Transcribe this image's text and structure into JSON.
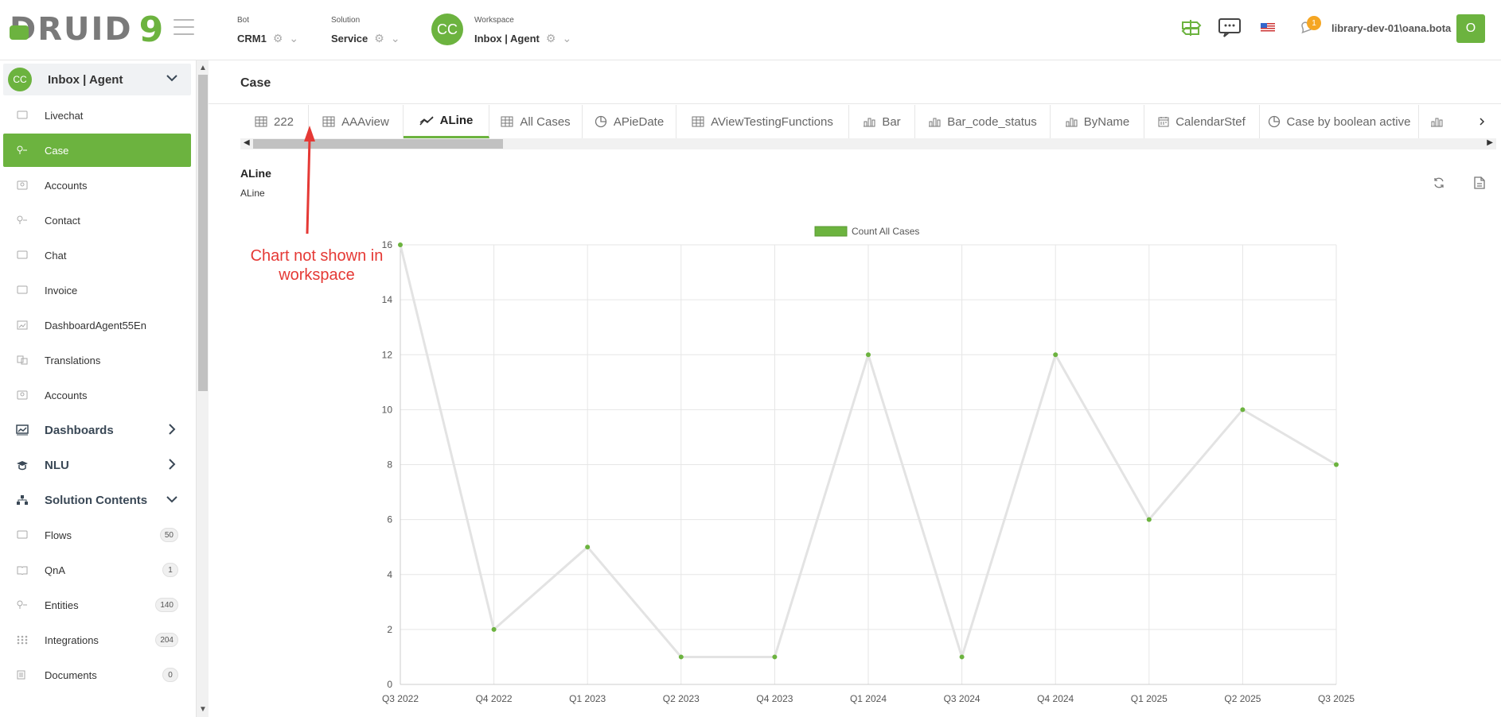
{
  "logo": {
    "word": "DRUID",
    "mark": "9"
  },
  "bot": {
    "label": "Bot",
    "value": "CRM1"
  },
  "solution": {
    "label": "Solution",
    "value": "Service"
  },
  "workspace": {
    "label": "Workspace",
    "value": "Inbox | Agent",
    "avatar": "CC"
  },
  "topbar": {
    "notifications_count": "1",
    "user": "library-dev-01\\oana.bota",
    "user_initial": "O",
    "icons": [
      "signpost-icon",
      "chat-bubble-icon",
      "us-flag-icon",
      "bell-icon"
    ]
  },
  "sidebar": {
    "workspace": {
      "avatar": "CC",
      "title": "Inbox | Agent"
    },
    "items": [
      {
        "label": "Livechat"
      },
      {
        "label": "Case"
      },
      {
        "label": "Accounts"
      },
      {
        "label": "Contact"
      },
      {
        "label": "Chat"
      },
      {
        "label": "Invoice"
      },
      {
        "label": "DashboardAgent55En"
      },
      {
        "label": "Translations"
      },
      {
        "label": "Accounts"
      }
    ],
    "groups": [
      {
        "label": "Dashboards"
      },
      {
        "label": "NLU"
      },
      {
        "label": "Solution Contents"
      }
    ],
    "solution_items": [
      {
        "label": "Flows",
        "count": "50"
      },
      {
        "label": "QnA",
        "count": "1"
      },
      {
        "label": "Entities",
        "count": "140"
      },
      {
        "label": "Integrations",
        "count": "204"
      },
      {
        "label": "Documents",
        "count": "0"
      }
    ]
  },
  "page": {
    "title": "Case"
  },
  "tabs": [
    {
      "label": "222",
      "icon": "table-icon"
    },
    {
      "label": "AAAview",
      "icon": "table-icon"
    },
    {
      "label": "ALine",
      "icon": "line-chart-icon"
    },
    {
      "label": "All Cases",
      "icon": "table-icon"
    },
    {
      "label": "APieDate",
      "icon": "pie-chart-icon"
    },
    {
      "label": "AViewTestingFunctions",
      "icon": "table-icon"
    },
    {
      "label": "Bar",
      "icon": "bar-chart-icon"
    },
    {
      "label": "Bar_code_status",
      "icon": "bar-chart-icon"
    },
    {
      "label": "ByName",
      "icon": "bar-chart-icon"
    },
    {
      "label": "CalendarStef",
      "icon": "calendar-icon"
    },
    {
      "label": "Case by boolean active",
      "icon": "pie-chart-icon"
    }
  ],
  "active_tab": "ALine",
  "view": {
    "title": "ALine",
    "subtitle": "ALine"
  },
  "annotation": {
    "line1": "Chart not shown in",
    "line2": "workspace",
    "color": "#e53935"
  },
  "colors": {
    "accent": "#6cb33f",
    "line": "#e3e3e3",
    "grid": "#e6e6e6"
  },
  "chart_data": {
    "type": "line",
    "categories": [
      "Q3 2022",
      "Q4 2022",
      "Q1 2023",
      "Q2 2023",
      "Q4 2023",
      "Q1 2024",
      "Q3 2024",
      "Q4 2024",
      "Q1 2025",
      "Q2 2025",
      "Q3 2025"
    ],
    "series": [
      {
        "name": "Count All Cases",
        "values": [
          16,
          2,
          5,
          1,
          1,
          12,
          1,
          12,
          6,
          10,
          8
        ]
      }
    ],
    "yticks": [
      "0",
      "2",
      "4",
      "6",
      "8",
      "10",
      "12",
      "14",
      "16"
    ],
    "ylim": [
      0,
      16
    ],
    "grid": true,
    "legend": "top"
  }
}
